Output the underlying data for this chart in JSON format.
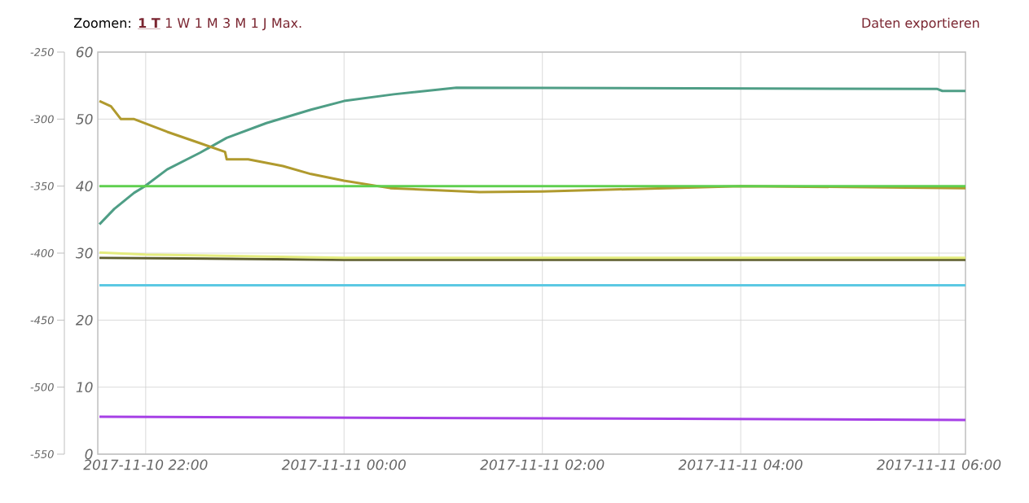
{
  "chart_data": {
    "type": "line",
    "annotations": [
      "Zoomen:",
      "1 T",
      "1 W",
      "1 M",
      "3 M",
      "1 J",
      "Max.",
      "Daten exportieren"
    ],
    "xlim": [
      "2017-11-10T21:31",
      "2017-11-11T06:16"
    ],
    "xticks": [
      {
        "value": "2017-11-10T22:00",
        "label": "2017-11-10 22:00"
      },
      {
        "value": "2017-11-11T00:00",
        "label": "2017-11-11 00:00"
      },
      {
        "value": "2017-11-11T02:00",
        "label": "2017-11-11 02:00"
      },
      {
        "value": "2017-11-11T04:00",
        "label": "2017-11-11 04:00"
      },
      {
        "value": "2017-11-11T06:00",
        "label": "2017-11-11 06:00"
      }
    ],
    "ylim": [
      0,
      60
    ],
    "yticks": [
      0,
      10,
      20,
      30,
      40,
      50,
      60
    ],
    "y2lim": [
      -550,
      -250
    ],
    "y2ticks": [
      -550,
      -500,
      -450,
      -400,
      -350,
      -300,
      -250
    ],
    "grid": true,
    "marker": "none",
    "line_style": "solid",
    "series": [
      {
        "color": "#4f9e86",
        "x": [
          "2017-11-10T21:32",
          "2017-11-10T21:41",
          "2017-11-10T21:53",
          "2017-11-10T21:59",
          "2017-11-10T22:13",
          "2017-11-10T22:33",
          "2017-11-10T22:49",
          "2017-11-10T23:13",
          "2017-11-10T23:40",
          "2017-11-11T00:00",
          "2017-11-11T00:30",
          "2017-11-11T01:08",
          "2017-11-11T05:59",
          "2017-11-11T06:02",
          "2017-11-11T06:16"
        ],
        "values": [
          34.3,
          36.6,
          39.0,
          39.9,
          42.5,
          45.0,
          47.2,
          49.4,
          51.4,
          52.7,
          53.7,
          54.7,
          54.5,
          54.2,
          54.2
        ]
      },
      {
        "color": "#b09a2e",
        "x": [
          "2017-11-10T21:32",
          "2017-11-10T21:39",
          "2017-11-10T21:45",
          "2017-11-10T21:53",
          "2017-11-10T22:13",
          "2017-11-10T22:33",
          "2017-11-10T22:48",
          "2017-11-10T22:49",
          "2017-11-10T23:02",
          "2017-11-10T23:23",
          "2017-11-10T23:40",
          "2017-11-11T00:00",
          "2017-11-11T00:28",
          "2017-11-11T01:22",
          "2017-11-11T02:00",
          "2017-11-11T04:00",
          "2017-11-11T06:16"
        ],
        "values": [
          52.7,
          51.9,
          50.0,
          50.0,
          48.1,
          46.4,
          45.1,
          44.0,
          44.0,
          43.0,
          41.8,
          40.8,
          39.7,
          39.1,
          39.2,
          40.0,
          39.7
        ]
      },
      {
        "color": "#5ecf4e",
        "x": [
          "2017-11-10T21:32",
          "2017-11-11T06:16"
        ],
        "values": [
          40.0,
          40.0
        ]
      },
      {
        "color": "#5e5e2e",
        "x": [
          "2017-11-10T21:32",
          "2017-11-11T00:00",
          "2017-11-11T06:16"
        ],
        "values": [
          29.3,
          29.0,
          29.0
        ]
      },
      {
        "color": "#e4ec7e",
        "x": [
          "2017-11-10T21:32",
          "2017-11-10T22:00",
          "2017-11-11T00:00",
          "2017-11-11T06:16"
        ],
        "values": [
          30.1,
          29.8,
          29.3,
          29.3
        ]
      },
      {
        "color": "#5cc9e3",
        "x": [
          "2017-11-10T21:32",
          "2017-11-11T06:16"
        ],
        "values": [
          25.2,
          25.2
        ]
      },
      {
        "color": "#a640e6",
        "x": [
          "2017-11-10T21:32",
          "2017-11-11T06:16"
        ],
        "values": [
          5.6,
          5.1
        ]
      }
    ]
  }
}
